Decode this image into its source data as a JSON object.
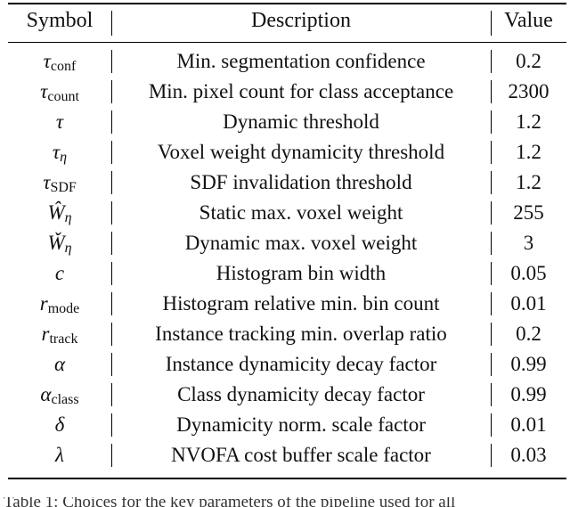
{
  "table": {
    "headers": {
      "symbol": "Symbol",
      "description": "Description",
      "value": "Value"
    },
    "rows": [
      {
        "sym_base": "τ",
        "sym_sub": "conf",
        "sub_italic": false,
        "description": "Min. segmentation confidence",
        "value": "0.2"
      },
      {
        "sym_base": "τ",
        "sym_sub": "count",
        "sub_italic": false,
        "description": "Min. pixel count for class acceptance",
        "value": "2300"
      },
      {
        "sym_base": "τ",
        "sym_sub": "",
        "sub_italic": false,
        "description": "Dynamic threshold",
        "value": "1.2"
      },
      {
        "sym_base": "τ",
        "sym_sub": "η",
        "sub_italic": true,
        "description": "Voxel weight dynamicity threshold",
        "value": "1.2"
      },
      {
        "sym_base": "τ",
        "sym_sub": "SDF",
        "sub_italic": false,
        "description": "SDF invalidation threshold",
        "value": "1.2"
      },
      {
        "sym_base": "Ŵ",
        "sym_sub": "η",
        "sub_italic": true,
        "description": "Static max. voxel weight",
        "value": "255"
      },
      {
        "sym_base": "W̌",
        "sym_sub": "η",
        "sub_italic": true,
        "description": "Dynamic max. voxel weight",
        "value": "3"
      },
      {
        "sym_base": "c",
        "sym_sub": "",
        "sub_italic": false,
        "description": "Histogram bin width",
        "value": "0.05"
      },
      {
        "sym_base": "r",
        "sym_sub": "mode",
        "sub_italic": false,
        "description": "Histogram relative min. bin count",
        "value": "0.01"
      },
      {
        "sym_base": "r",
        "sym_sub": "track",
        "sub_italic": false,
        "description": "Instance tracking min. overlap ratio",
        "value": "0.2"
      },
      {
        "sym_base": "α",
        "sym_sub": "",
        "sub_italic": false,
        "description": "Instance dynamicity decay factor",
        "value": "0.99"
      },
      {
        "sym_base": "α",
        "sym_sub": "class",
        "sub_italic": false,
        "description": "Class dynamicity decay factor",
        "value": "0.99"
      },
      {
        "sym_base": "δ",
        "sym_sub": "",
        "sub_italic": false,
        "description": "Dynamicity norm. scale factor",
        "value": "0.01"
      },
      {
        "sym_base": "λ",
        "sym_sub": "",
        "sub_italic": false,
        "description": "NVOFA cost buffer scale factor",
        "value": "0.03"
      }
    ]
  },
  "caption": "Table 1: Choices for the key parameters of the pipeline used for all"
}
